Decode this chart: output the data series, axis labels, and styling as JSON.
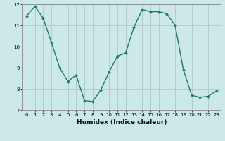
{
  "x": [
    0,
    1,
    2,
    3,
    4,
    5,
    6,
    7,
    8,
    9,
    10,
    11,
    12,
    13,
    14,
    15,
    16,
    17,
    18,
    19,
    20,
    21,
    22,
    23
  ],
  "y": [
    11.45,
    11.9,
    11.35,
    10.2,
    9.0,
    8.35,
    8.65,
    7.45,
    7.4,
    7.95,
    8.8,
    9.55,
    9.7,
    10.9,
    11.75,
    11.65,
    11.65,
    11.55,
    11.0,
    8.9,
    7.7,
    7.6,
    7.65,
    7.9
  ],
  "xlabel": "Humidex (Indice chaleur)",
  "ylim": [
    7,
    12
  ],
  "xlim": [
    -0.5,
    23.5
  ],
  "yticks": [
    7,
    8,
    9,
    10,
    11,
    12
  ],
  "xticks": [
    0,
    1,
    2,
    3,
    4,
    5,
    6,
    7,
    8,
    9,
    10,
    11,
    12,
    13,
    14,
    15,
    16,
    17,
    18,
    19,
    20,
    21,
    22,
    23
  ],
  "line_color": "#1a7a6a",
  "marker": "D",
  "marker_size": 1.8,
  "bg_color": "#cde8e8",
  "grid_color": "#adc8c8",
  "axes_bg": "#cde8e8",
  "tick_fontsize": 5.0,
  "xlabel_fontsize": 6.5,
  "linewidth": 1.0
}
